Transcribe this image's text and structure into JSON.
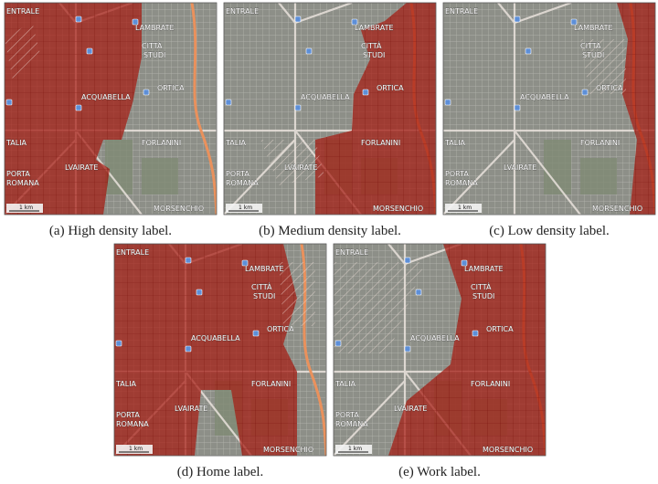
{
  "figure": {
    "panels": [
      {
        "caption": "(a) High density label."
      },
      {
        "caption": "(b) Medium density label."
      },
      {
        "caption": "(c) Low density label."
      },
      {
        "caption": "(d) Home label."
      },
      {
        "caption": "(e) Work label."
      }
    ],
    "map_labels": [
      "ENTRALE",
      "LAMBRATE",
      "CITTÀ",
      "STUDI",
      "ACQUABELLA",
      "ORTICA",
      "FORLANINI",
      "TALIA",
      "LVAIRATE",
      "PORTA",
      "ROMANA",
      "MORSENCHIO"
    ],
    "scale": "1 km"
  }
}
